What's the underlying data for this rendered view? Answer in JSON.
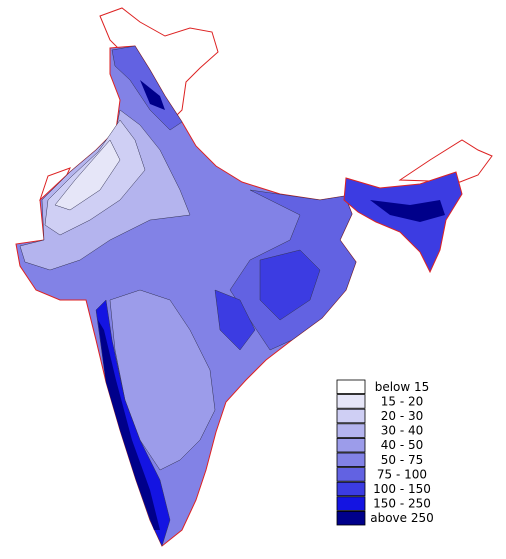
{
  "legend": {
    "items": [
      {
        "label": "below 15",
        "color": "#ffffff"
      },
      {
        "label": "15 - 20",
        "color": "#e6e6f8"
      },
      {
        "label": "20 - 30",
        "color": "#cfcff4"
      },
      {
        "label": "30 - 40",
        "color": "#b4b4ee"
      },
      {
        "label": "40 - 50",
        "color": "#9c9cea"
      },
      {
        "label": "50 - 75",
        "color": "#8282e6"
      },
      {
        "label": "75 - 100",
        "color": "#6262e2"
      },
      {
        "label": "100 - 150",
        "color": "#3c3ce2"
      },
      {
        "label": "150 - 250",
        "color": "#1414e2"
      },
      {
        "label": "above 250",
        "color": "#00008a"
      }
    ]
  }
}
